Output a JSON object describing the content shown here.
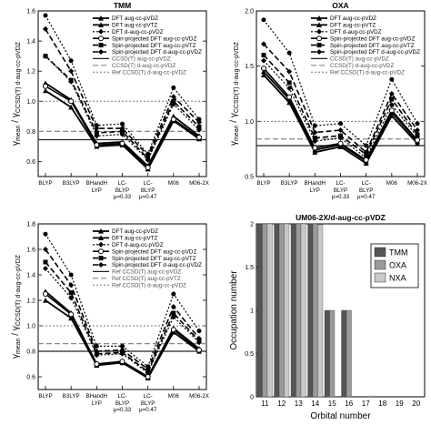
{
  "chart_data": [
    {
      "type": "line",
      "title": "TMM",
      "ylabel_main": "γ",
      "ylabel_main_sub": "mean",
      "ylabel_denom": "γ",
      "ylabel_denom_sub": "CCSD(T) d-aug-cc-pVDZ",
      "ylim": [
        0.5,
        1.6
      ],
      "yticks": [
        "0.6",
        "0.8",
        "1.0",
        "1.2",
        "1.4",
        "1.6"
      ],
      "categories": [
        "BLYP",
        "B3LYP",
        "BHandH LYP",
        "LC-BLYP",
        "LC-BLYP",
        "M06",
        "M06-2X"
      ],
      "category_lines": [
        [
          "BLYP"
        ],
        [
          "B3LYP"
        ],
        [
          "BHandH",
          "LYP"
        ],
        [
          "LC-",
          "BLYP"
        ],
        [
          "LC-",
          "BLYP"
        ],
        [
          "M06"
        ],
        [
          "M06-2X"
        ]
      ],
      "annotations": [
        "μ=0.33",
        "μ=0.47"
      ],
      "reference_lines": [
        {
          "name": "CCSD(T) aug-cc-pVDZ",
          "value": 0.745
        },
        {
          "name": "CCSD(T) d-aug-cc-pVDZ",
          "value": 0.8
        },
        {
          "name": "Ref CCSD(T) d-aug-cc-pVDZ",
          "value": 1.0
        }
      ],
      "series": [
        {
          "name": "DFT aug-cc-pVDZ",
          "values": [
            1.07,
            0.96,
            0.7,
            0.71,
            0.55,
            0.87,
            0.75
          ]
        },
        {
          "name": "DFT aug-cc-pVTZ",
          "values": [
            1.12,
            1.01,
            0.72,
            0.73,
            0.57,
            0.9,
            0.77
          ]
        },
        {
          "name": "DFT d-aug-cc-pVDZ",
          "values": [
            1.3,
            1.13,
            0.77,
            0.78,
            0.61,
            0.98,
            0.81
          ]
        },
        {
          "name": "Spin-projected DFT aug-cc-pVDZ",
          "values": [
            1.1,
            1.0,
            0.71,
            0.72,
            0.56,
            0.88,
            0.76
          ]
        },
        {
          "name": "Spin-projected DFT aug-cc-pVTZ",
          "values": [
            1.3,
            1.14,
            0.79,
            0.8,
            0.62,
            1.0,
            0.83
          ]
        },
        {
          "name": "Spin-projected DFT d-aug-cc-pVDZ",
          "values": [
            1.48,
            1.2,
            0.82,
            0.82,
            0.64,
            1.03,
            0.86
          ]
        },
        {
          "name": "Ref",
          "values": [
            1.57,
            1.27,
            0.84,
            0.85,
            0.65,
            1.09,
            0.88
          ]
        }
      ]
    },
    {
      "type": "line",
      "title": "OXA",
      "ylabel_main": "γ",
      "ylabel_main_sub": "mean",
      "ylabel_denom": "γ",
      "ylabel_denom_sub": "CCSD(T) d-aug-cc-pVDZ",
      "ylim": [
        0.5,
        2.0
      ],
      "yticks": [
        "0.5",
        "1.0",
        "1.5",
        "2.0"
      ],
      "categories": [
        "BLYP",
        "B3LYP",
        "BHandH LYP",
        "LC-BLYP",
        "LC-BLYP",
        "M06",
        "M06-2X"
      ],
      "category_lines": [
        [
          "BLYP"
        ],
        [
          "B3LYP"
        ],
        [
          "BHandH",
          "LYP"
        ],
        [
          "LC-",
          "BLYP"
        ],
        [
          "LC-",
          "BLYP"
        ],
        [
          "M06"
        ],
        [
          "M06-2X"
        ]
      ],
      "annotations": [
        "μ=0.33",
        "μ=0.47"
      ],
      "reference_lines": [
        {
          "name": "CCSD(T) aug-cc-pVDZ",
          "value": 0.78
        },
        {
          "name": "CCSD(T) d-aug-cc-pVDZ",
          "value": 0.84
        },
        {
          "name": "Ref CCSD(T) d-aug-cc-pVDZ",
          "value": 1.0
        }
      ],
      "series": [
        {
          "name": "DFT aug-cc-pVDZ",
          "values": [
            1.42,
            1.17,
            0.72,
            0.77,
            0.62,
            1.05,
            0.8
          ]
        },
        {
          "name": "DFT aug-cc-pVTZ",
          "values": [
            1.45,
            1.2,
            0.74,
            0.79,
            0.64,
            1.08,
            0.82
          ]
        },
        {
          "name": "DFT d-aug-cc-pVDZ",
          "values": [
            1.55,
            1.3,
            0.82,
            0.85,
            0.67,
            1.15,
            0.86
          ]
        },
        {
          "name": "Spin-projected DFT aug-cc-pVDZ",
          "values": [
            1.48,
            1.22,
            0.76,
            0.8,
            0.65,
            1.1,
            0.83
          ]
        },
        {
          "name": "Spin-projected DFT aug-cc-pVTZ",
          "values": [
            1.6,
            1.35,
            0.85,
            0.87,
            0.7,
            1.2,
            0.88
          ]
        },
        {
          "name": "Spin-projected DFT d-aug-cc-pVDZ",
          "values": [
            1.7,
            1.45,
            0.9,
            0.92,
            0.72,
            1.25,
            0.92
          ]
        },
        {
          "name": "Ref",
          "values": [
            1.92,
            1.62,
            0.96,
            0.98,
            0.78,
            1.38,
            0.98
          ]
        }
      ]
    },
    {
      "type": "line",
      "title": "",
      "ylabel_main": "γ",
      "ylabel_main_sub": "mean",
      "ylabel_denom": "γ",
      "ylabel_denom_sub": "CCSD(T) d-aug-cc-pVDZ",
      "ylim": [
        0.5,
        1.8
      ],
      "yticks": [
        "0.6",
        "0.8",
        "1.0",
        "1.2",
        "1.4",
        "1.6",
        "1.8"
      ],
      "categories": [
        "BLYP",
        "B3LYP",
        "BHandH LYP",
        "LC-BLYP",
        "LC-BLYP",
        "M06",
        "M06-2X"
      ],
      "category_lines": [
        [
          "BLYP"
        ],
        [
          "B3LYP"
        ],
        [
          "BHandH",
          "LYP"
        ],
        [
          "LC-",
          "BLYP"
        ],
        [
          "LC-",
          "BLYP"
        ],
        [
          "M06"
        ],
        [
          "M06-2X"
        ]
      ],
      "annotations": [
        "μ=0.33",
        "μ=0.47"
      ],
      "reference_lines": [
        {
          "name": "Ref CCSD(T) aug-cc-pVDZ",
          "value": 0.8
        },
        {
          "name": "Ref CCSD(T) aug-cc-pVTZ",
          "value": 0.86
        },
        {
          "name": "Ref CCSD(T) d-aug-cc-pVDZ",
          "value": 1.0
        }
      ],
      "series": [
        {
          "name": "DFT aug-cc-pVDZ",
          "values": [
            1.2,
            1.06,
            0.69,
            0.71,
            0.59,
            0.95,
            0.8
          ]
        },
        {
          "name": "DFT aug-cc-pVTZ",
          "values": [
            1.27,
            1.1,
            0.7,
            0.72,
            0.6,
            0.98,
            0.82
          ]
        },
        {
          "name": "DFT d-aug-cc-pVDZ",
          "values": [
            1.45,
            1.22,
            0.77,
            0.78,
            0.63,
            1.07,
            0.87
          ]
        },
        {
          "name": "Spin-projected DFT aug-cc-pVDZ",
          "values": [
            1.25,
            1.09,
            0.7,
            0.72,
            0.6,
            0.97,
            0.81
          ]
        },
        {
          "name": "Spin-projected DFT aug-cc-pVTZ",
          "values": [
            1.5,
            1.26,
            0.78,
            0.79,
            0.64,
            1.1,
            0.88
          ]
        },
        {
          "name": "Spin-projected DFT d-aug-cc-pVDZ",
          "values": [
            1.6,
            1.32,
            0.8,
            0.81,
            0.66,
            1.15,
            0.9
          ]
        },
        {
          "name": "Ref",
          "values": [
            1.72,
            1.4,
            0.84,
            0.84,
            0.68,
            1.25,
            0.96
          ]
        }
      ]
    },
    {
      "type": "bar",
      "title": "UM06-2X/d-aug-cc-pVDZ",
      "xlabel": "Orbital number",
      "ylabel": "Occupation number",
      "ylim": [
        0,
        2
      ],
      "yticks": [
        "0",
        "0.5",
        "1",
        "1.5",
        "2"
      ],
      "categories": [
        "11",
        "12",
        "13",
        "14",
        "15",
        "16",
        "17",
        "18",
        "19",
        "20"
      ],
      "series": [
        {
          "name": "TMM",
          "values": [
            2,
            2,
            2,
            2,
            1,
            1,
            0,
            0,
            0,
            0
          ]
        },
        {
          "name": "OXA",
          "values": [
            2,
            2,
            2,
            2,
            1,
            1,
            0,
            0,
            0,
            0
          ]
        },
        {
          "name": "NXA",
          "values": [
            2,
            2,
            2,
            1.99,
            0,
            0,
            0.01,
            0,
            0,
            0
          ]
        }
      ]
    }
  ]
}
